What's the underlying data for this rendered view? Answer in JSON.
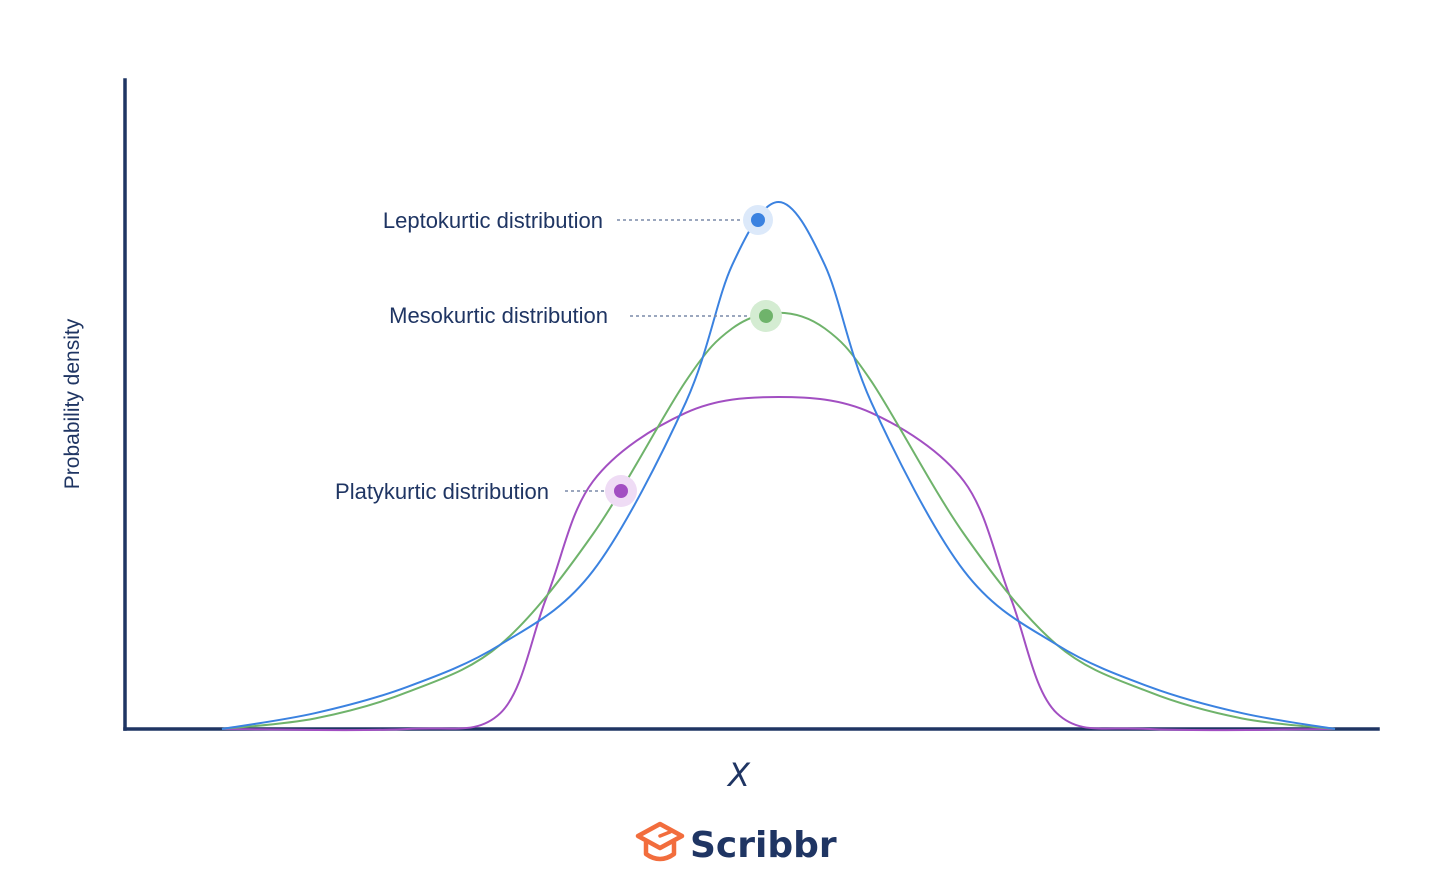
{
  "chart_data": {
    "type": "line",
    "title": "",
    "xlabel": "X",
    "ylabel": "Probability density",
    "grid": false,
    "legend": "inline-annotations",
    "series": [
      {
        "name": "Leptokurtic distribution",
        "color": "#3b82e0",
        "shape": "peaked with heavy tails",
        "x": [
          -3,
          -2.5,
          -2,
          -1.5,
          -1,
          -0.5,
          -0.25,
          0,
          0.25,
          0.5,
          1,
          1.5,
          2,
          2.5,
          3
        ],
        "y": [
          0.0,
          0.03,
          0.08,
          0.16,
          0.3,
          0.62,
          0.88,
          1.0,
          0.88,
          0.62,
          0.3,
          0.16,
          0.08,
          0.03,
          0.0
        ]
      },
      {
        "name": "Mesokurtic distribution",
        "color": "#6fb36b",
        "shape": "normal",
        "x": [
          -3,
          -2.5,
          -2,
          -1.5,
          -1,
          -0.5,
          -0.25,
          0,
          0.25,
          0.5,
          1,
          1.5,
          2,
          2.5,
          3
        ],
        "y": [
          0.0,
          0.02,
          0.07,
          0.16,
          0.37,
          0.66,
          0.76,
          0.79,
          0.76,
          0.66,
          0.37,
          0.16,
          0.07,
          0.02,
          0.0
        ]
      },
      {
        "name": "Platykurtic distribution",
        "color": "#a24fc2",
        "shape": "flat-topped with thin tails",
        "x": [
          -3,
          -2,
          -1.5,
          -1.25,
          -1,
          -0.5,
          0,
          0.5,
          1,
          1.25,
          1.5,
          2,
          3
        ],
        "y": [
          0.0,
          0.0,
          0.03,
          0.25,
          0.47,
          0.6,
          0.63,
          0.6,
          0.47,
          0.25,
          0.03,
          0.0,
          0.0
        ]
      }
    ],
    "annotations": [
      {
        "text": "Leptokurtic distribution",
        "series": 0,
        "color": "#3b82e0",
        "halo": "#dce9fa"
      },
      {
        "text": "Mesokurtic distribution",
        "series": 1,
        "color": "#6fb36b",
        "halo": "#d4ecd2"
      },
      {
        "text": "Platykurtic distribution",
        "series": 2,
        "color": "#a24fc2",
        "halo": "#efdcf5"
      }
    ]
  },
  "logo": {
    "text": "Scribbr",
    "icon": "graduation-cap-icon",
    "color": "#f26d3d"
  }
}
